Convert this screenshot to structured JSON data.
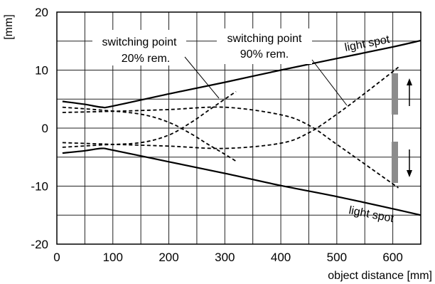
{
  "chart_data": {
    "type": "line",
    "xlabel": "object distance [mm]",
    "ylabel": "[mm]",
    "xlim": [
      0,
      650
    ],
    "ylim": [
      -20,
      20
    ],
    "x_ticks": [
      0,
      100,
      200,
      300,
      400,
      500,
      600
    ],
    "y_ticks": [
      -20,
      -10,
      0,
      10,
      20
    ],
    "x_minor_grid": [
      50,
      150,
      250,
      350,
      450,
      550
    ],
    "y_minor_grid": [
      -15,
      -5,
      5,
      15
    ],
    "grid": true,
    "series": [
      {
        "name": "light spot",
        "style": "solid",
        "x": [
          10,
          50,
          80,
          100,
          200,
          300,
          400,
          500,
          600,
          650
        ],
        "y": [
          4.6,
          4.1,
          3.6,
          3.8,
          5.9,
          7.9,
          10.0,
          12.0,
          14.0,
          15.1
        ]
      },
      {
        "name": "light spot",
        "style": "solid",
        "x": [
          10,
          50,
          80,
          100,
          200,
          300,
          400,
          500,
          600,
          650
        ],
        "y": [
          -4.3,
          -3.9,
          -3.5,
          -3.8,
          -5.8,
          -7.8,
          -9.9,
          -11.8,
          -13.9,
          -15.0
        ]
      },
      {
        "name": "switching point 20% rem.",
        "style": "dashed",
        "x": [
          10,
          80,
          150,
          200,
          240,
          270,
          300,
          320
        ],
        "y": [
          -3.3,
          -2.9,
          -2.5,
          -1.2,
          1.0,
          3.0,
          5.0,
          6.3
        ]
      },
      {
        "name": "switching point 20% rem.",
        "style": "dashed",
        "x": [
          10,
          80,
          150,
          200,
          240,
          270,
          300,
          320
        ],
        "y": [
          3.6,
          3.1,
          2.4,
          1.0,
          -1.0,
          -2.8,
          -4.5,
          -5.7
        ]
      },
      {
        "name": "switching point 90% rem.",
        "style": "dashed",
        "x": [
          10,
          100,
          200,
          300,
          400,
          450,
          500,
          550,
          610
        ],
        "y": [
          2.7,
          2.9,
          3.2,
          3.6,
          2.3,
          0.5,
          -2.8,
          -6.2,
          -10.3
        ]
      },
      {
        "name": "switching point 90% rem.",
        "style": "dashed",
        "x": [
          10,
          100,
          200,
          300,
          400,
          450,
          500,
          550,
          610
        ],
        "y": [
          -2.5,
          -2.8,
          -3.1,
          -3.5,
          -2.6,
          -0.8,
          2.4,
          6.0,
          10.5
        ]
      }
    ],
    "annotations": {
      "sp20_line1": "switching point",
      "sp20_line2": "20% rem.",
      "sp90_line1": "switching point",
      "sp90_line2": "90% rem.",
      "light_spot_top": "light spot",
      "light_spot_bottom": "light spot"
    },
    "indicator": {
      "bar_color": "#8c8c8c"
    }
  }
}
